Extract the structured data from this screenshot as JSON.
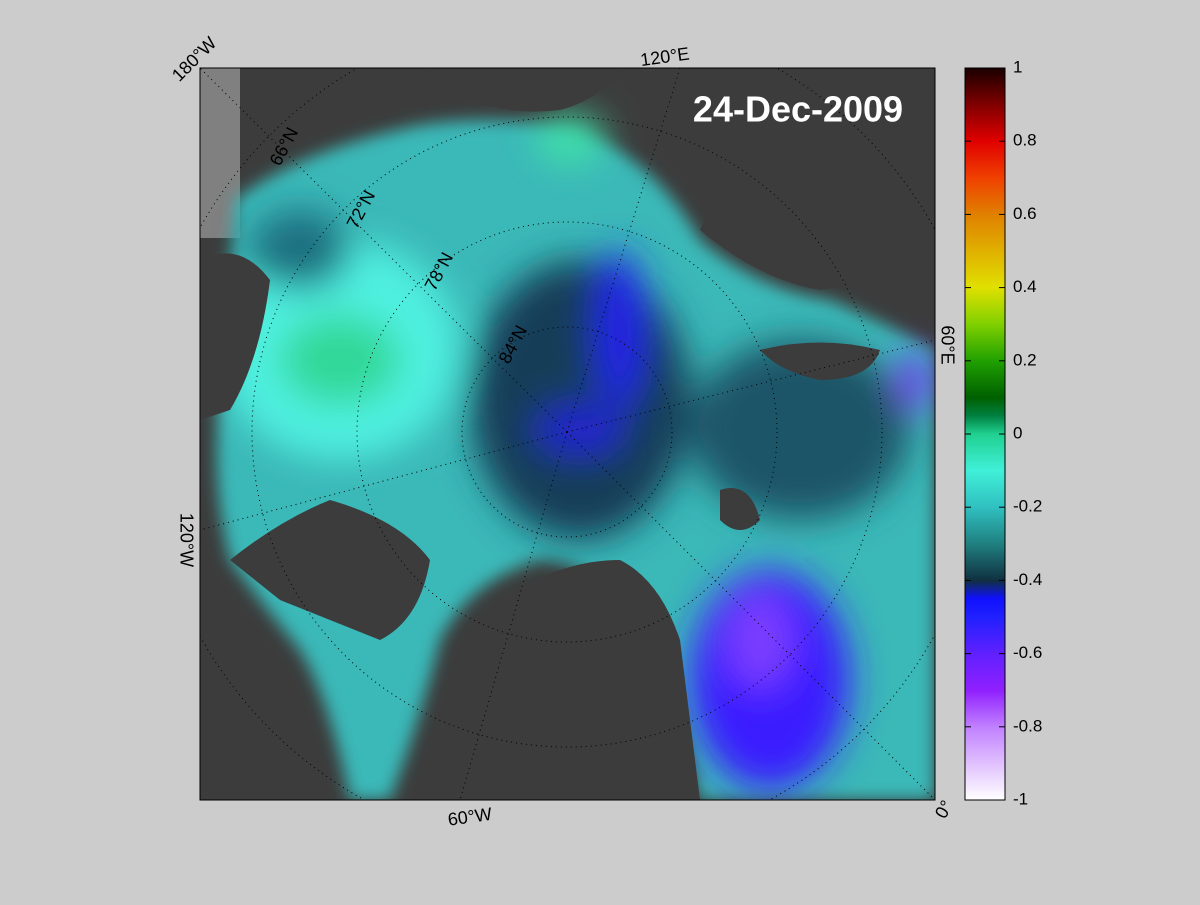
{
  "map": {
    "date": "24-Dec-2009",
    "longitude_labels": [
      "180°W",
      "120°E",
      "60°E",
      "0°",
      "60°W",
      "120°W"
    ],
    "latitude_labels": [
      "66°N",
      "72°N",
      "78°N",
      "84°N"
    ],
    "colorbar": {
      "lim": [
        -1,
        1
      ],
      "ticks": [
        1,
        0.8,
        0.6,
        0.4,
        0.2,
        0,
        -0.2,
        -0.4,
        -0.6,
        -0.8,
        -1
      ]
    }
  }
}
